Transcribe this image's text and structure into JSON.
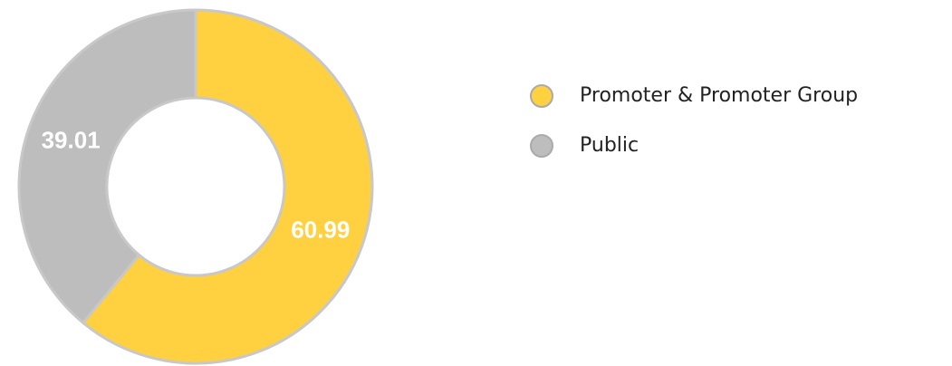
{
  "chart_data": {
    "type": "donut",
    "categories": [
      "Promoter & Promoter Group",
      "Public"
    ],
    "values": [
      60.99,
      39.01
    ],
    "colors": [
      "#ffd040",
      "#bdbdbd"
    ],
    "legend": "right"
  }
}
